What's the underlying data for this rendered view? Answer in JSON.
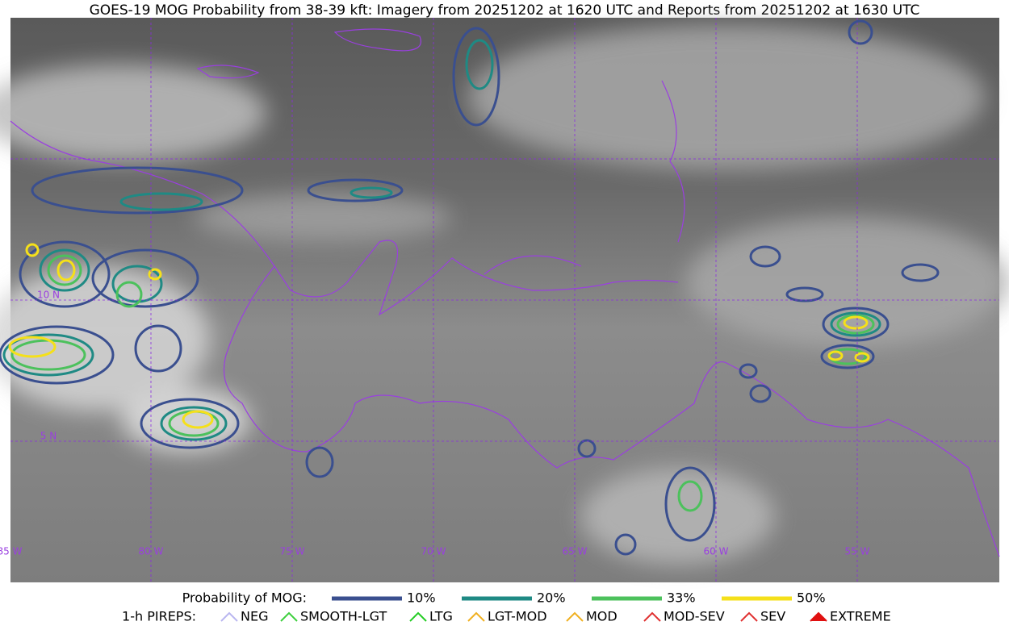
{
  "header": {
    "title": "GOES-19 MOG Probability from 38-39 kft: Imagery from 20251202 at 1620 UTC and Reports from 20251202 at 1630 UTC"
  },
  "map": {
    "lon_labels": [
      "85 W",
      "80 W",
      "75 W",
      "70 W",
      "65 W",
      "60 W",
      "55 W"
    ],
    "lat_labels": [
      "10 N",
      "5 N"
    ]
  },
  "legend": {
    "probability": {
      "title": "Probability of MOG:",
      "items": [
        {
          "label": "10%",
          "color": "#3a4f8f"
        },
        {
          "label": "20%",
          "color": "#1f8a84"
        },
        {
          "label": "33%",
          "color": "#4cc15c"
        },
        {
          "label": "50%",
          "color": "#f5e01a"
        }
      ]
    },
    "pireps": {
      "title": "1-h PIREPS:",
      "items": [
        {
          "label": "NEG",
          "color": "#b9b6f0"
        },
        {
          "label": "SMOOTH-LGT",
          "color": "#3ccf3c"
        },
        {
          "label": "LTG",
          "color": "#22cc22"
        },
        {
          "label": "LGT-MOD",
          "color": "#f0b020"
        },
        {
          "label": "MOD",
          "color": "#f0b020"
        },
        {
          "label": "MOD-SEV",
          "color": "#e03030"
        },
        {
          "label": "SEV",
          "color": "#e03030"
        },
        {
          "label": "EXTREME",
          "color": "#e01010"
        }
      ]
    }
  }
}
